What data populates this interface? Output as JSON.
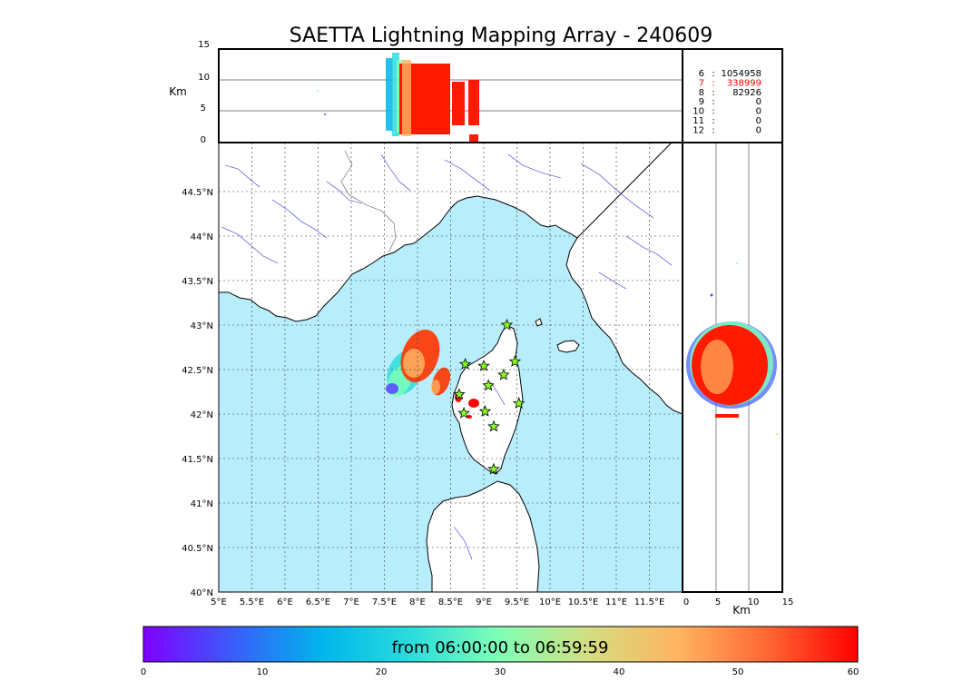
{
  "title": "SAETTA Lightning Mapping Array - 240609",
  "altitude_axis": {
    "label": "Km",
    "ticks": [
      "0",
      "5",
      "10",
      "15"
    ]
  },
  "map": {
    "lon_ticks": [
      "5°E",
      "5.5°E",
      "6°E",
      "6.5°E",
      "7°E",
      "7.5°E",
      "8°E",
      "8.5°E",
      "9°E",
      "9.5°E",
      "10°E",
      "10.5°E",
      "11°E",
      "11.5°E"
    ],
    "lat_ticks": [
      "40°N",
      "40.5°N",
      "41°N",
      "41.5°N",
      "42°N",
      "42.5°N",
      "43°N",
      "43.5°N",
      "44°N",
      "44.5°N"
    ],
    "lon_range": [
      5,
      12
    ],
    "lat_range": [
      40,
      45
    ],
    "sea_color": "#b8eefc",
    "grid": true
  },
  "station_counts": [
    {
      "stations": "6",
      "sep": ":",
      "count": "1054958",
      "color": "#000000"
    },
    {
      "stations": "7",
      "sep": ":",
      "count": "338999",
      "color": "#ff0000"
    },
    {
      "stations": "8",
      "sep": ":",
      "count": "82926",
      "color": "#000000"
    },
    {
      "stations": "9",
      "sep": ":",
      "count": "0",
      "color": "#000000"
    },
    {
      "stations": "10",
      "sep": ":",
      "count": "0",
      "color": "#000000"
    },
    {
      "stations": "11",
      "sep": ":",
      "count": "0",
      "color": "#000000"
    },
    {
      "stations": "12",
      "sep": ":",
      "count": "0",
      "color": "#000000"
    }
  ],
  "stations": [
    {
      "lon": 9.35,
      "lat": 43.0
    },
    {
      "lon": 8.72,
      "lat": 42.56
    },
    {
      "lon": 9.0,
      "lat": 42.54
    },
    {
      "lon": 9.47,
      "lat": 42.59
    },
    {
      "lon": 9.3,
      "lat": 42.44
    },
    {
      "lon": 9.07,
      "lat": 42.32
    },
    {
      "lon": 8.63,
      "lat": 42.22
    },
    {
      "lon": 9.53,
      "lat": 42.12
    },
    {
      "lon": 8.7,
      "lat": 42.01
    },
    {
      "lon": 9.02,
      "lat": 42.03
    },
    {
      "lon": 9.15,
      "lat": 41.86
    },
    {
      "lon": 9.15,
      "lat": 41.38
    }
  ],
  "colorbar": {
    "label": "from 06:00:00 to 06:59:59",
    "ticks": [
      "0",
      "10",
      "20",
      "30",
      "40",
      "50",
      "60"
    ],
    "range": [
      0,
      60
    ],
    "colors": [
      "#7f00ff",
      "#3a5cfb",
      "#00b5eb",
      "#2adddd",
      "#80ffb4",
      "#d4dd80",
      "#ffb360",
      "#ff6633",
      "#ff0000"
    ]
  }
}
